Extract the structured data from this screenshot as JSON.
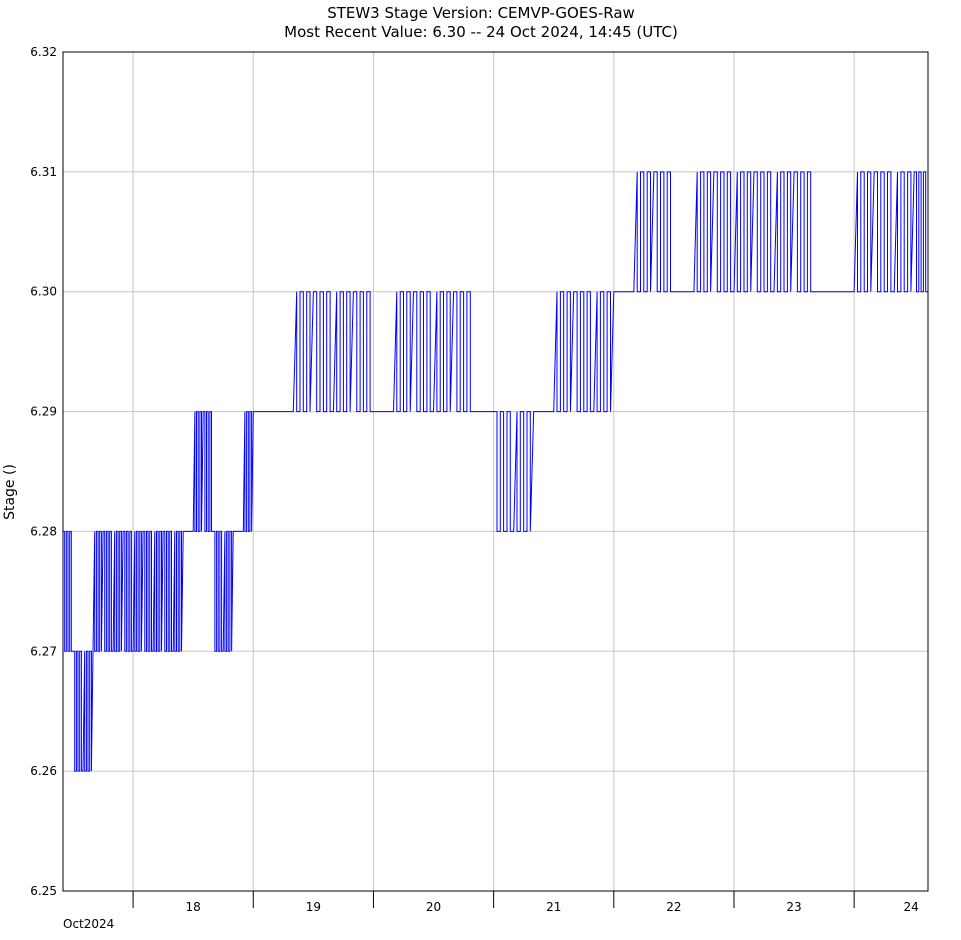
{
  "chart_data": {
    "type": "line",
    "title": "STEW3  Stage  Version: CEMVP-GOES-Raw",
    "subtitle": "Most Recent Value: 6.30  --  24 Oct 2024, 14:45 (UTC)",
    "ylabel": "Stage ()",
    "xlabel": "",
    "x_month_label": "Oct2024",
    "ylim": [
      6.25,
      6.32
    ],
    "y_ticks": [
      "6.25",
      "6.26",
      "6.27",
      "6.28",
      "6.29",
      "6.30",
      "6.31",
      "6.32"
    ],
    "x_tick_days": [
      "18",
      "19",
      "20",
      "21",
      "22",
      "23",
      "24"
    ],
    "x_range": [
      "2024-10-17T10:00",
      "2024-10-24T14:45"
    ],
    "grid": true,
    "line_color": "#0000ff",
    "series": [
      {
        "x": [
          "2024-10-17T10:00",
          "2024-10-17T12:00",
          "2024-10-17T14:00",
          "2024-10-17T16:00",
          "2024-10-17T18:00",
          "2024-10-17T20:00",
          "2024-10-17T22:00",
          "2024-10-18T00:00",
          "2024-10-18T02:00",
          "2024-10-18T04:00",
          "2024-10-18T06:00",
          "2024-10-18T08:00",
          "2024-10-18T10:00",
          "2024-10-18T12:00",
          "2024-10-18T14:00",
          "2024-10-18T16:00",
          "2024-10-18T18:00",
          "2024-10-18T20:00",
          "2024-10-18T22:00",
          "2024-10-19T00:00",
          "2024-10-19T04:00",
          "2024-10-19T08:00",
          "2024-10-19T12:00",
          "2024-10-19T16:00",
          "2024-10-19T20:00",
          "2024-10-20T00:00",
          "2024-10-20T04:00",
          "2024-10-20T08:00",
          "2024-10-20T12:00",
          "2024-10-20T16:00",
          "2024-10-20T20:00",
          "2024-10-21T00:00",
          "2024-10-21T04:00",
          "2024-10-21T08:00",
          "2024-10-21T12:00",
          "2024-10-21T16:00",
          "2024-10-21T20:00",
          "2024-10-22T00:00",
          "2024-10-22T04:00",
          "2024-10-22T08:00",
          "2024-10-22T12:00",
          "2024-10-22T16:00",
          "2024-10-22T20:00",
          "2024-10-23T00:00",
          "2024-10-23T04:00",
          "2024-10-23T08:00",
          "2024-10-23T12:00",
          "2024-10-23T16:00",
          "2024-10-23T20:00",
          "2024-10-24T00:00",
          "2024-10-24T04:00",
          "2024-10-24T08:00",
          "2024-10-24T12:00",
          "2024-10-24T14:45"
        ],
        "values": [
          6.28,
          6.27,
          6.26,
          6.27,
          6.28,
          6.27,
          6.28,
          6.27,
          6.28,
          6.27,
          6.28,
          6.27,
          6.28,
          6.28,
          6.29,
          6.28,
          6.27,
          6.28,
          6.28,
          6.29,
          6.29,
          6.29,
          6.3,
          6.29,
          6.3,
          6.29,
          6.29,
          6.3,
          6.29,
          6.3,
          6.29,
          6.29,
          6.28,
          6.29,
          6.29,
          6.3,
          6.29,
          6.3,
          6.3,
          6.31,
          6.3,
          6.3,
          6.31,
          6.3,
          6.31,
          6.3,
          6.31,
          6.3,
          6.3,
          6.3,
          6.31,
          6.3,
          6.31,
          6.3
        ]
      }
    ]
  }
}
